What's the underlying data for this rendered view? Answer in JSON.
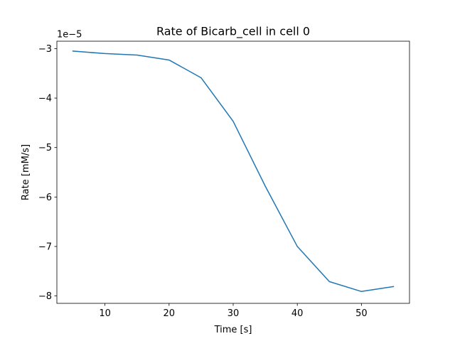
{
  "chart_data": {
    "type": "line",
    "title": "Rate of Bicarb_cell in cell 0",
    "xlabel": "Time [s]",
    "ylabel": "Rate [mM/s]",
    "y_offset_label": "1e−5",
    "xlim": [
      2.5,
      57.5
    ],
    "ylim": [
      -8.15,
      -2.85
    ],
    "x_ticks": [
      10,
      20,
      30,
      40,
      50
    ],
    "x_tick_labels": [
      "10",
      "20",
      "30",
      "40",
      "50"
    ],
    "y_ticks": [
      -3,
      -4,
      -5,
      -6,
      -7,
      -8
    ],
    "y_tick_labels": [
      "−3",
      "−4",
      "−5",
      "−6",
      "−7",
      "−8"
    ],
    "grid": false,
    "line_color": "#1f77b4",
    "series": [
      {
        "x": [
          5,
          10,
          15,
          20,
          25,
          30,
          35,
          40,
          45,
          50,
          55
        ],
        "y": [
          -3.05,
          -3.1,
          -3.13,
          -3.23,
          -3.59,
          -4.47,
          -5.78,
          -7.0,
          -7.71,
          -7.91,
          -7.81
        ]
      }
    ]
  }
}
